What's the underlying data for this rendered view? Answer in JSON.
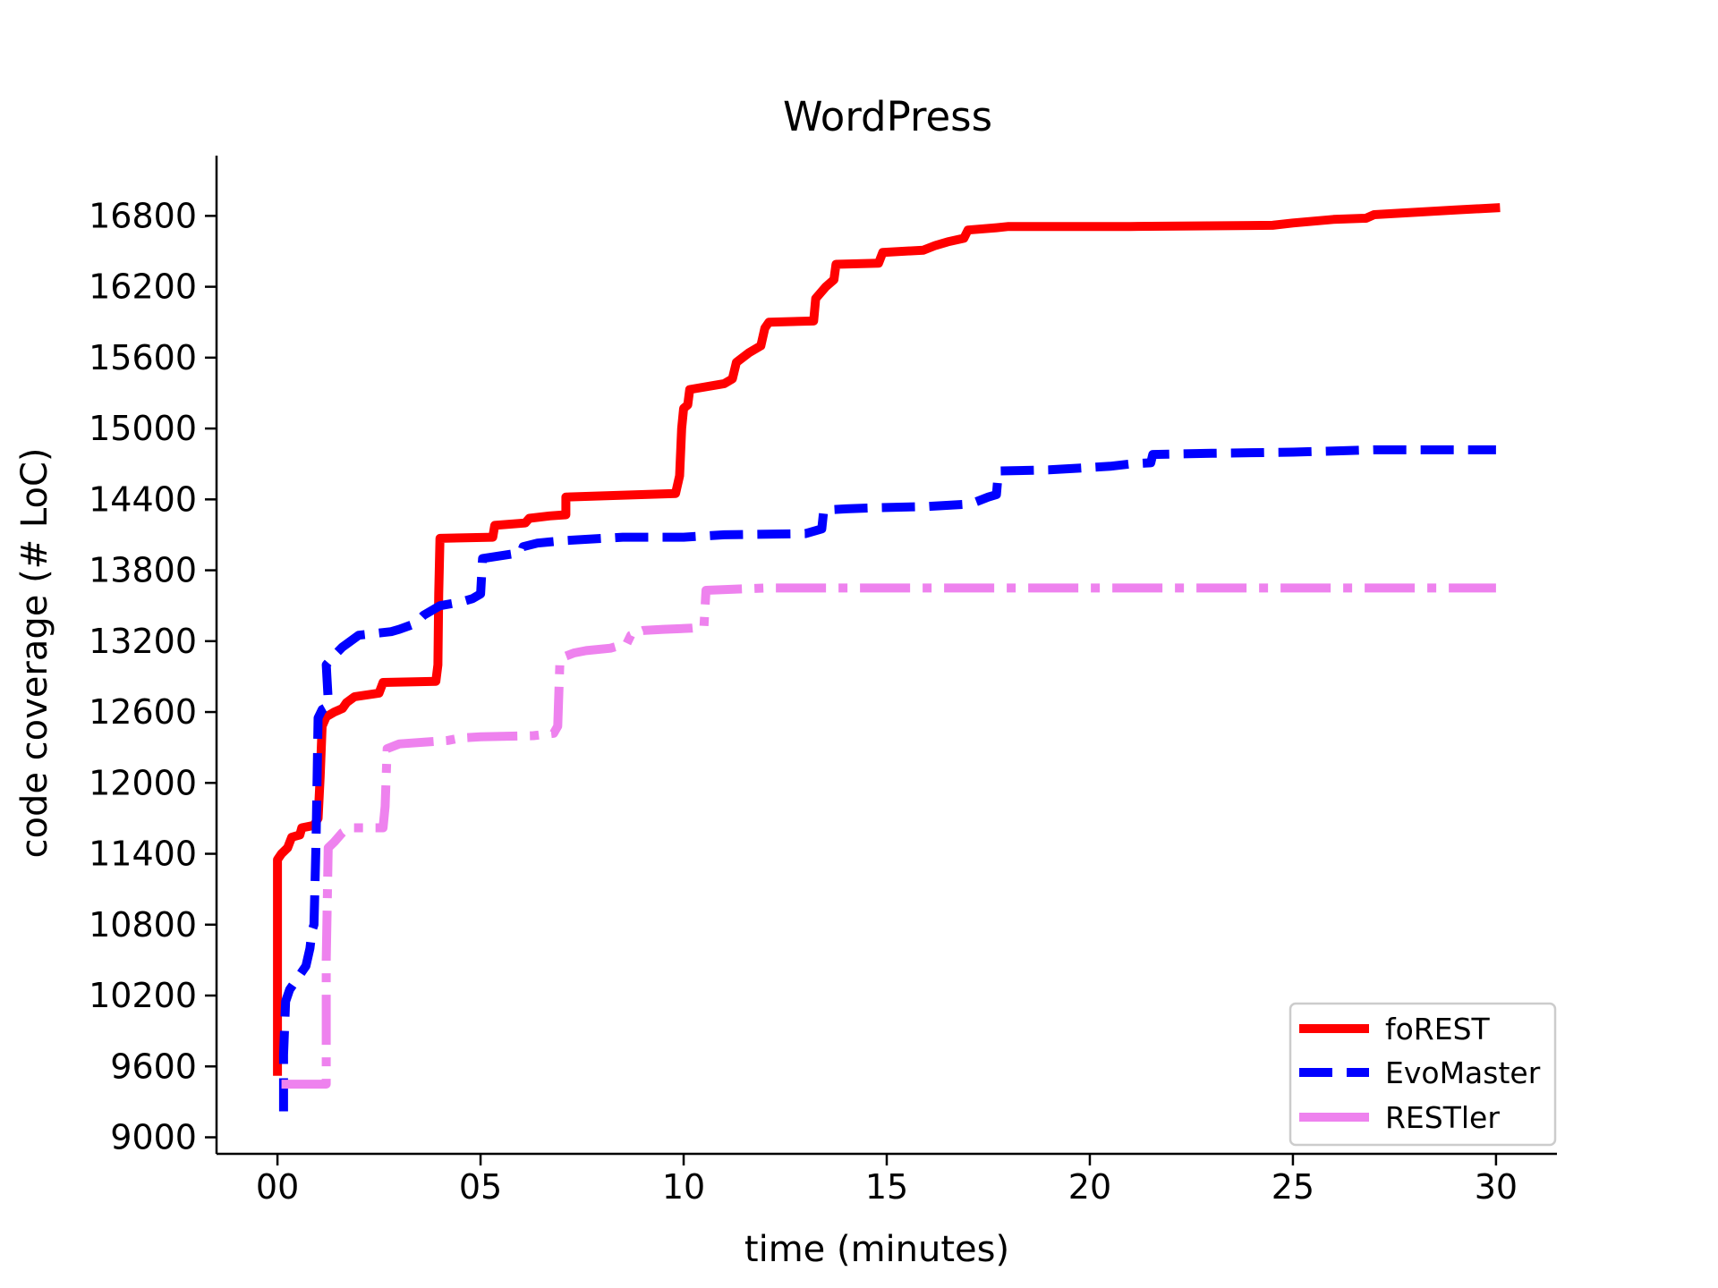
{
  "chart_data": {
    "type": "line",
    "title": "WordPress",
    "xlabel": "time (minutes)",
    "ylabel": "code coverage (# LoC)",
    "xlim": [
      -1.5,
      31.5
    ],
    "ylim": [
      8860,
      17310
    ],
    "x_ticks": [
      0,
      5,
      10,
      15,
      20,
      25,
      30
    ],
    "x_tick_labels": [
      "00",
      "05",
      "10",
      "15",
      "20",
      "25",
      "30"
    ],
    "y_ticks": [
      9000,
      9600,
      10200,
      10800,
      11400,
      12000,
      12600,
      13200,
      13800,
      14400,
      15000,
      15600,
      16200,
      16800
    ],
    "y_tick_labels": [
      "9000",
      "9600",
      "10200",
      "10800",
      "11400",
      "12000",
      "12600",
      "13200",
      "13800",
      "14400",
      "15000",
      "15600",
      "16200",
      "16800"
    ],
    "grid": false,
    "legend_position": "lower-right",
    "series": [
      {
        "name": "foREST",
        "color": "#ff0000",
        "style": "solid",
        "points": [
          [
            0,
            9520
          ],
          [
            0,
            11350
          ],
          [
            0.1,
            11400
          ],
          [
            0.25,
            11450
          ],
          [
            0.35,
            11540
          ],
          [
            0.55,
            11560
          ],
          [
            0.6,
            11620
          ],
          [
            0.9,
            11640
          ],
          [
            1.0,
            11700
          ],
          [
            1.05,
            12050
          ],
          [
            1.1,
            12480
          ],
          [
            1.2,
            12560
          ],
          [
            1.4,
            12600
          ],
          [
            1.6,
            12630
          ],
          [
            1.7,
            12680
          ],
          [
            1.9,
            12730
          ],
          [
            2.5,
            12760
          ],
          [
            2.6,
            12850
          ],
          [
            3.9,
            12860
          ],
          [
            3.95,
            13000
          ],
          [
            3.97,
            13600
          ],
          [
            4.0,
            14070
          ],
          [
            5.3,
            14080
          ],
          [
            5.35,
            14180
          ],
          [
            6.1,
            14200
          ],
          [
            6.2,
            14240
          ],
          [
            6.7,
            14260
          ],
          [
            7.1,
            14270
          ],
          [
            7.1,
            14420
          ],
          [
            9.8,
            14450
          ],
          [
            9.9,
            14600
          ],
          [
            9.95,
            15000
          ],
          [
            10.0,
            15170
          ],
          [
            10.1,
            15200
          ],
          [
            10.15,
            15330
          ],
          [
            11.0,
            15380
          ],
          [
            11.2,
            15420
          ],
          [
            11.3,
            15560
          ],
          [
            11.6,
            15640
          ],
          [
            11.9,
            15700
          ],
          [
            12.0,
            15850
          ],
          [
            12.1,
            15900
          ],
          [
            13.2,
            15910
          ],
          [
            13.25,
            16100
          ],
          [
            13.5,
            16200
          ],
          [
            13.7,
            16260
          ],
          [
            13.75,
            16390
          ],
          [
            14.8,
            16400
          ],
          [
            14.9,
            16490
          ],
          [
            15.9,
            16510
          ],
          [
            16.2,
            16550
          ],
          [
            16.5,
            16580
          ],
          [
            16.9,
            16610
          ],
          [
            17.0,
            16680
          ],
          [
            17.7,
            16700
          ],
          [
            18.0,
            16710
          ],
          [
            21.0,
            16710
          ],
          [
            24.5,
            16720
          ],
          [
            25.0,
            16740
          ],
          [
            26.0,
            16770
          ],
          [
            26.8,
            16780
          ],
          [
            27.0,
            16810
          ],
          [
            28.0,
            16830
          ],
          [
            29.0,
            16850
          ],
          [
            30.1,
            16870
          ]
        ]
      },
      {
        "name": "EvoMaster",
        "color": "#0000ff",
        "style": "dashed",
        "points": [
          [
            0.15,
            9220
          ],
          [
            0.15,
            9700
          ],
          [
            0.2,
            10150
          ],
          [
            0.3,
            10250
          ],
          [
            0.5,
            10350
          ],
          [
            0.7,
            10450
          ],
          [
            0.8,
            10600
          ],
          [
            0.85,
            10750
          ],
          [
            0.9,
            10800
          ],
          [
            0.95,
            11500
          ],
          [
            1.0,
            12550
          ],
          [
            1.1,
            12620
          ],
          [
            1.2,
            12640
          ],
          [
            1.25,
            12700
          ],
          [
            1.2,
            13000
          ],
          [
            1.4,
            13080
          ],
          [
            1.6,
            13150
          ],
          [
            1.8,
            13200
          ],
          [
            2.0,
            13250
          ],
          [
            2.8,
            13280
          ],
          [
            3.0,
            13300
          ],
          [
            3.4,
            13350
          ],
          [
            3.6,
            13420
          ],
          [
            4.0,
            13500
          ],
          [
            4.5,
            13530
          ],
          [
            4.8,
            13560
          ],
          [
            5.0,
            13600
          ],
          [
            5.05,
            13900
          ],
          [
            6.0,
            13950
          ],
          [
            6.05,
            14000
          ],
          [
            6.4,
            14030
          ],
          [
            7.0,
            14050
          ],
          [
            8.5,
            14080
          ],
          [
            10.0,
            14080
          ],
          [
            11.0,
            14100
          ],
          [
            13.0,
            14110
          ],
          [
            13.4,
            14150
          ],
          [
            13.45,
            14310
          ],
          [
            14.0,
            14320
          ],
          [
            14.8,
            14330
          ],
          [
            16.0,
            14340
          ],
          [
            17.0,
            14360
          ],
          [
            17.2,
            14380
          ],
          [
            17.5,
            14420
          ],
          [
            17.7,
            14440
          ],
          [
            17.75,
            14640
          ],
          [
            19.0,
            14650
          ],
          [
            20.5,
            14680
          ],
          [
            21.0,
            14700
          ],
          [
            21.5,
            14710
          ],
          [
            21.55,
            14780
          ],
          [
            23.0,
            14790
          ],
          [
            25.0,
            14800
          ],
          [
            26.0,
            14810
          ],
          [
            27.0,
            14820
          ],
          [
            30.0,
            14820
          ]
        ]
      },
      {
        "name": "RESTler",
        "color": "#ee82ee",
        "style": "dashdot",
        "points": [
          [
            0.1,
            9450
          ],
          [
            1.2,
            9450
          ],
          [
            1.2,
            10500
          ],
          [
            1.25,
            11450
          ],
          [
            1.4,
            11500
          ],
          [
            1.6,
            11580
          ],
          [
            1.8,
            11620
          ],
          [
            2.6,
            11620
          ],
          [
            2.65,
            11800
          ],
          [
            2.7,
            12290
          ],
          [
            3.0,
            12330
          ],
          [
            4.2,
            12360
          ],
          [
            4.5,
            12380
          ],
          [
            5.0,
            12390
          ],
          [
            6.3,
            12400
          ],
          [
            6.8,
            12420
          ],
          [
            6.9,
            12480
          ],
          [
            6.95,
            13000
          ],
          [
            7.0,
            13060
          ],
          [
            7.3,
            13100
          ],
          [
            7.6,
            13120
          ],
          [
            8.2,
            13140
          ],
          [
            8.6,
            13180
          ],
          [
            8.7,
            13250
          ],
          [
            9.0,
            13290
          ],
          [
            9.5,
            13300
          ],
          [
            10.2,
            13310
          ],
          [
            10.5,
            13320
          ],
          [
            10.55,
            13630
          ],
          [
            12.0,
            13650
          ],
          [
            20.0,
            13650
          ],
          [
            30.0,
            13650
          ]
        ]
      }
    ]
  }
}
